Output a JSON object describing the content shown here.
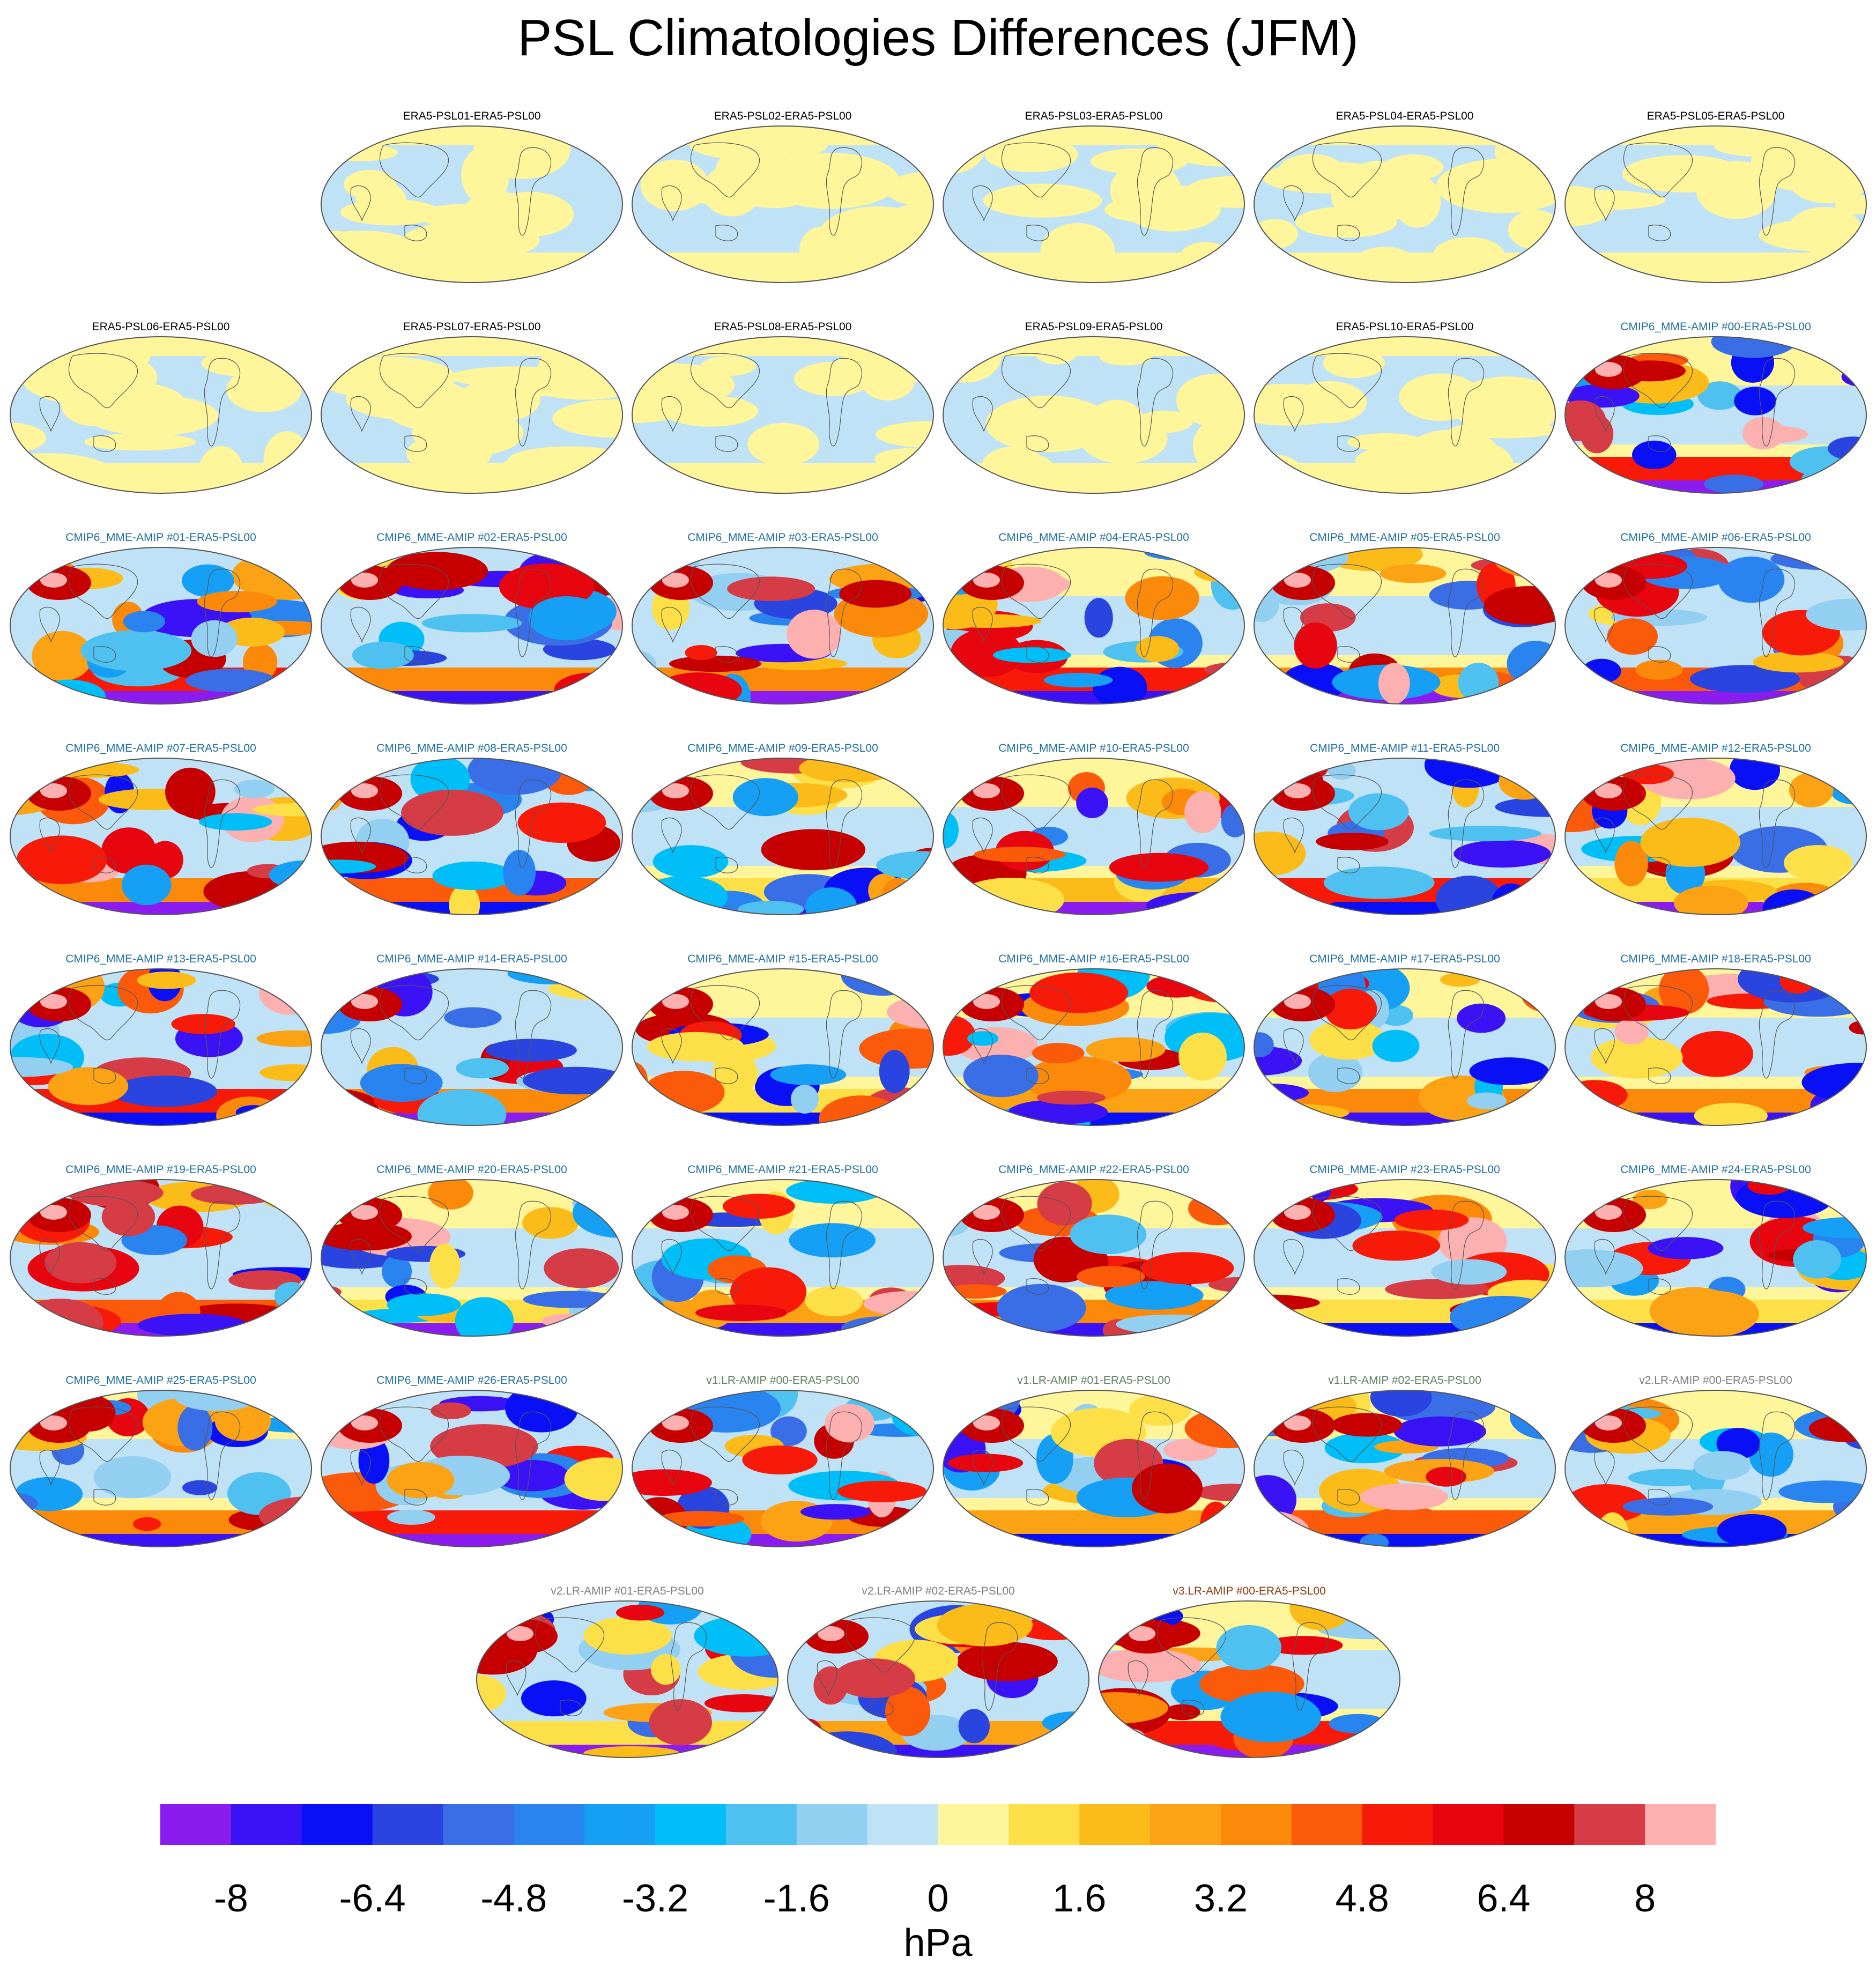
{
  "title": "PSL Climatologies Differences (JFM)",
  "chart_data": {
    "type": "heatmap",
    "description_kind": "global_map_panels",
    "title": "PSL Climatologies Differences (JFM)",
    "projection": "Robinson",
    "colorbar": {
      "unit": "hPa",
      "tick_labels": [
        "-8",
        "-6.4",
        "-4.8",
        "-3.2",
        "-1.6",
        "0",
        "1.6",
        "3.2",
        "4.8",
        "6.4",
        "8"
      ],
      "levels": [
        -8,
        -7.2,
        -6.4,
        -5.6,
        -4.8,
        -4.0,
        -3.2,
        -2.4,
        -1.6,
        -0.8,
        0,
        0.8,
        1.6,
        2.4,
        3.2,
        4.0,
        4.8,
        5.6,
        6.4,
        7.2,
        8
      ],
      "colors": [
        "#8a1cf0",
        "#3a12f5",
        "#0a10f5",
        "#2a45df",
        "#3a6ee6",
        "#2a84f0",
        "#15a0f5",
        "#00bff8",
        "#4ec1f0",
        "#93cff0",
        "#bfe2f6",
        "#fff59a",
        "#fde048",
        "#fbbc1a",
        "#fba215",
        "#fb8a0a",
        "#fa5a0a",
        "#f81a08",
        "#e70610",
        "#c60000",
        "#d63c46",
        "#fcb0b0"
      ]
    },
    "panels": [
      {
        "title": "ERA5-PSL01-ERA5-PSL00",
        "group": "ERA5"
      },
      {
        "title": "ERA5-PSL02-ERA5-PSL00",
        "group": "ERA5"
      },
      {
        "title": "ERA5-PSL03-ERA5-PSL00",
        "group": "ERA5"
      },
      {
        "title": "ERA5-PSL04-ERA5-PSL00",
        "group": "ERA5"
      },
      {
        "title": "ERA5-PSL05-ERA5-PSL00",
        "group": "ERA5"
      },
      {
        "title": "ERA5-PSL06-ERA5-PSL00",
        "group": "ERA5"
      },
      {
        "title": "ERA5-PSL07-ERA5-PSL00",
        "group": "ERA5"
      },
      {
        "title": "ERA5-PSL08-ERA5-PSL00",
        "group": "ERA5"
      },
      {
        "title": "ERA5-PSL09-ERA5-PSL00",
        "group": "ERA5"
      },
      {
        "title": "ERA5-PSL10-ERA5-PSL00",
        "group": "ERA5"
      },
      {
        "title": "CMIP6_MME-AMIP  #00-ERA5-PSL00",
        "group": "CMIP6"
      },
      {
        "title": "CMIP6_MME-AMIP  #01-ERA5-PSL00",
        "group": "CMIP6"
      },
      {
        "title": "CMIP6_MME-AMIP  #02-ERA5-PSL00",
        "group": "CMIP6"
      },
      {
        "title": "CMIP6_MME-AMIP  #03-ERA5-PSL00",
        "group": "CMIP6"
      },
      {
        "title": "CMIP6_MME-AMIP  #04-ERA5-PSL00",
        "group": "CMIP6"
      },
      {
        "title": "CMIP6_MME-AMIP  #05-ERA5-PSL00",
        "group": "CMIP6"
      },
      {
        "title": "CMIP6_MME-AMIP  #06-ERA5-PSL00",
        "group": "CMIP6"
      },
      {
        "title": "CMIP6_MME-AMIP  #07-ERA5-PSL00",
        "group": "CMIP6"
      },
      {
        "title": "CMIP6_MME-AMIP  #08-ERA5-PSL00",
        "group": "CMIP6"
      },
      {
        "title": "CMIP6_MME-AMIP  #09-ERA5-PSL00",
        "group": "CMIP6"
      },
      {
        "title": "CMIP6_MME-AMIP  #10-ERA5-PSL00",
        "group": "CMIP6"
      },
      {
        "title": "CMIP6_MME-AMIP  #11-ERA5-PSL00",
        "group": "CMIP6"
      },
      {
        "title": "CMIP6_MME-AMIP  #12-ERA5-PSL00",
        "group": "CMIP6"
      },
      {
        "title": "CMIP6_MME-AMIP  #13-ERA5-PSL00",
        "group": "CMIP6"
      },
      {
        "title": "CMIP6_MME-AMIP  #14-ERA5-PSL00",
        "group": "CMIP6"
      },
      {
        "title": "CMIP6_MME-AMIP  #15-ERA5-PSL00",
        "group": "CMIP6"
      },
      {
        "title": "CMIP6_MME-AMIP  #16-ERA5-PSL00",
        "group": "CMIP6"
      },
      {
        "title": "CMIP6_MME-AMIP  #17-ERA5-PSL00",
        "group": "CMIP6"
      },
      {
        "title": "CMIP6_MME-AMIP  #18-ERA5-PSL00",
        "group": "CMIP6"
      },
      {
        "title": "CMIP6_MME-AMIP  #19-ERA5-PSL00",
        "group": "CMIP6"
      },
      {
        "title": "CMIP6_MME-AMIP  #20-ERA5-PSL00",
        "group": "CMIP6"
      },
      {
        "title": "CMIP6_MME-AMIP  #21-ERA5-PSL00",
        "group": "CMIP6"
      },
      {
        "title": "CMIP6_MME-AMIP  #22-ERA5-PSL00",
        "group": "CMIP6"
      },
      {
        "title": "CMIP6_MME-AMIP  #23-ERA5-PSL00",
        "group": "CMIP6"
      },
      {
        "title": "CMIP6_MME-AMIP  #24-ERA5-PSL00",
        "group": "CMIP6"
      },
      {
        "title": "CMIP6_MME-AMIP  #25-ERA5-PSL00",
        "group": "CMIP6"
      },
      {
        "title": "CMIP6_MME-AMIP  #26-ERA5-PSL00",
        "group": "CMIP6"
      },
      {
        "title": "v1.LR-AMIP  #00-ERA5-PSL00",
        "group": "v1"
      },
      {
        "title": "v1.LR-AMIP  #01-ERA5-PSL00",
        "group": "v1"
      },
      {
        "title": "v1.LR-AMIP  #02-ERA5-PSL00",
        "group": "v1"
      },
      {
        "title": "v2.LR-AMIP  #00-ERA5-PSL00",
        "group": "v2"
      },
      {
        "title": "v2.LR-AMIP  #01-ERA5-PSL00",
        "group": "v2"
      },
      {
        "title": "v2.LR-AMIP  #02-ERA5-PSL00",
        "group": "v2"
      },
      {
        "title": "v3.LR-AMIP  #00-ERA5-PSL00",
        "group": "v3"
      }
    ]
  },
  "colors": {
    "ERA5": "#000000",
    "CMIP6": "#1f6f9f",
    "v1": "#5f7f5f",
    "v2": "#7f7f7f",
    "v3": "#8b3a0e"
  }
}
